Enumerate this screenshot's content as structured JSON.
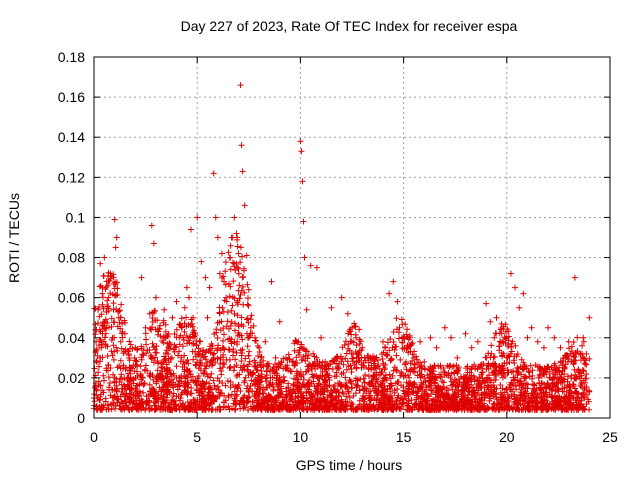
{
  "chart_data": {
    "type": "scatter",
    "title": "Day 227 of 2023, Rate Of TEC Index for receiver espa",
    "xlabel": "GPS time / hours",
    "ylabel": "ROTI / TECUs",
    "xlim": [
      0,
      25
    ],
    "ylim": [
      0,
      0.18
    ],
    "x_ticks": [
      0,
      5,
      10,
      15,
      20,
      25
    ],
    "x_tick_labels": [
      "0",
      "5",
      "10",
      "15",
      "20",
      "25"
    ],
    "y_ticks": [
      0,
      0.02,
      0.04,
      0.06,
      0.08,
      0.1,
      0.12,
      0.14,
      0.16,
      0.18
    ],
    "y_tick_labels": [
      "0",
      "0.02",
      "0.04",
      "0.06",
      "0.08",
      "0.1",
      "0.12",
      "0.14",
      "0.16",
      "0.18"
    ],
    "grid": true,
    "marker": "+",
    "color": "#e00000",
    "series": [
      {
        "name": "ROTI",
        "x": [
          0.0,
          0.1,
          0.2,
          0.3,
          0.35,
          0.4,
          0.5,
          0.6,
          0.7,
          0.8,
          0.9,
          1.0,
          1.05,
          1.1,
          1.2,
          1.3,
          1.5,
          1.7,
          2.0,
          2.3,
          2.5,
          2.7,
          2.8,
          2.9,
          3.0,
          3.2,
          3.4,
          3.6,
          3.8,
          4.0,
          4.2,
          4.4,
          4.5,
          4.6,
          4.7,
          4.8,
          5.0,
          5.2,
          5.4,
          5.5,
          5.6,
          5.8,
          5.9,
          6.0,
          6.1,
          6.2,
          6.4,
          6.6,
          6.8,
          6.9,
          7.0,
          7.1,
          7.15,
          7.2,
          7.3,
          7.4,
          7.5,
          7.6,
          7.8,
          8.0,
          8.3,
          8.6,
          8.8,
          9.0,
          9.3,
          9.6,
          9.9,
          10.0,
          10.05,
          10.1,
          10.15,
          10.2,
          10.3,
          10.5,
          10.8,
          11.0,
          11.2,
          11.5,
          11.8,
          12.0,
          12.3,
          12.5,
          12.7,
          13.0,
          13.3,
          13.6,
          14.0,
          14.3,
          14.5,
          14.7,
          14.8,
          15.0,
          15.2,
          15.5,
          15.8,
          16.0,
          16.3,
          16.6,
          17.0,
          17.3,
          17.6,
          18.0,
          18.3,
          18.6,
          19.0,
          19.2,
          19.5,
          19.8,
          20.0,
          20.2,
          20.4,
          20.6,
          20.8,
          21.0,
          21.2,
          21.5,
          21.8,
          22.0,
          22.3,
          22.6,
          23.0,
          23.3,
          23.5,
          23.7,
          24.0
        ],
        "y": [
          0.01,
          0.038,
          0.054,
          0.077,
          0.035,
          0.062,
          0.08,
          0.045,
          0.06,
          0.072,
          0.04,
          0.099,
          0.085,
          0.09,
          0.05,
          0.038,
          0.042,
          0.03,
          0.035,
          0.07,
          0.045,
          0.052,
          0.096,
          0.087,
          0.06,
          0.046,
          0.054,
          0.035,
          0.05,
          0.058,
          0.041,
          0.055,
          0.065,
          0.06,
          0.094,
          0.05,
          0.1,
          0.078,
          0.07,
          0.05,
          0.065,
          0.122,
          0.1,
          0.09,
          0.072,
          0.082,
          0.06,
          0.08,
          0.1,
          0.092,
          0.082,
          0.166,
          0.136,
          0.123,
          0.106,
          0.081,
          0.064,
          0.045,
          0.04,
          0.035,
          0.038,
          0.068,
          0.03,
          0.048,
          0.03,
          0.028,
          0.038,
          0.138,
          0.133,
          0.118,
          0.098,
          0.08,
          0.054,
          0.076,
          0.075,
          0.04,
          0.028,
          0.055,
          0.03,
          0.06,
          0.052,
          0.045,
          0.04,
          0.035,
          0.025,
          0.03,
          0.038,
          0.062,
          0.068,
          0.058,
          0.045,
          0.04,
          0.035,
          0.03,
          0.038,
          0.028,
          0.04,
          0.035,
          0.045,
          0.04,
          0.03,
          0.042,
          0.035,
          0.038,
          0.057,
          0.048,
          0.05,
          0.038,
          0.04,
          0.072,
          0.065,
          0.055,
          0.062,
          0.04,
          0.045,
          0.038,
          0.035,
          0.045,
          0.04,
          0.035,
          0.038,
          0.07,
          0.032,
          0.04,
          0.05
        ]
      }
    ]
  }
}
